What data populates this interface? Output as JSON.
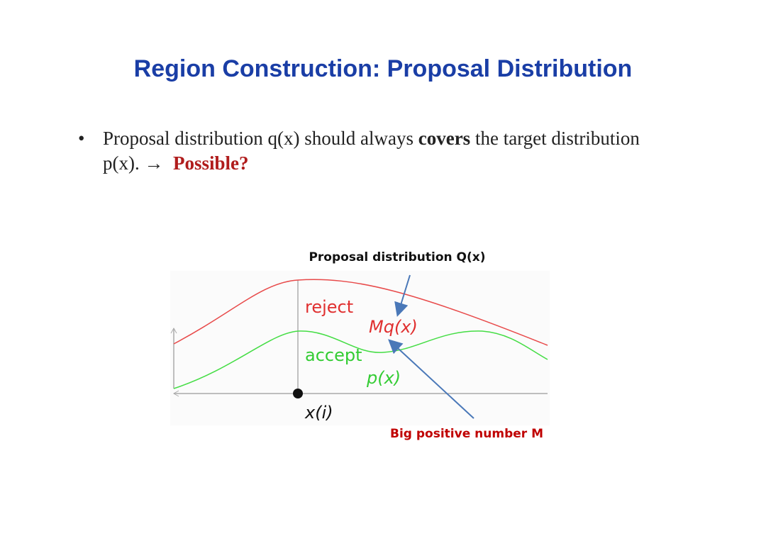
{
  "header": {
    "title": "Region Construction: Proposal Distribution"
  },
  "bullet": {
    "text_1": "Proposal distribution q(x) should always ",
    "bold": "covers",
    "text_2": " the target distribution p(x). ",
    "arrow": "→",
    "highlight": "Possible?"
  },
  "diagram": {
    "reject": "reject",
    "mq": "Mq(x)",
    "accept": "accept",
    "p": "p(x)",
    "x_i": "x(i)",
    "annotation_top": "Proposal distribution Q(x)",
    "annotation_bottom": "Big positive number M"
  }
}
